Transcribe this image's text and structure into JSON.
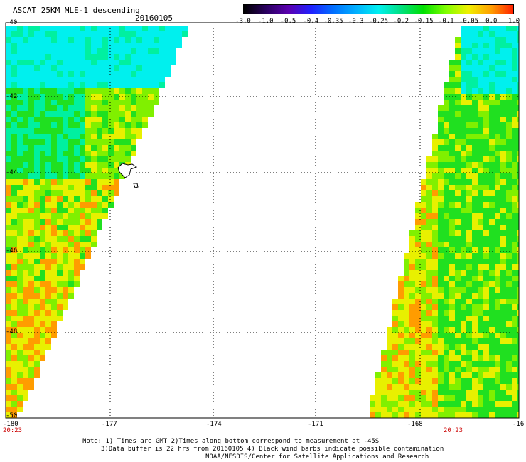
{
  "header": {
    "title": "ASCAT 25KM MLE-1 descending",
    "date": "20160105"
  },
  "colorbar": {
    "labels": [
      "-3.0",
      "-1.0",
      "-0.5",
      "-0.4",
      "-0.35",
      "-0.3",
      "-0.25",
      "-0.2",
      "-0.15",
      "-0.1",
      "-0.05",
      "0.0",
      "1.0"
    ],
    "colors": [
      "#000000",
      "#2a0060",
      "#5a00b0",
      "#2020ff",
      "#0070ff",
      "#00b0ff",
      "#00f0f0",
      "#00e080",
      "#00e000",
      "#80ff00",
      "#f0f000",
      "#ffa000",
      "#ff2000"
    ]
  },
  "axes": {
    "lat_labels": [
      "-40",
      "-42",
      "-44",
      "-46",
      "-48",
      "-50"
    ],
    "lon_labels": [
      "-180",
      "-177",
      "-174",
      "-171",
      "-168",
      "-16"
    ],
    "time_labels": [
      "20:23",
      "20:23"
    ]
  },
  "note": {
    "line1": "Note: 1) Times are GMT 2)Times along bottom correspond to measurement at -45S",
    "line2": "3)Data buffer is 22 hrs from 20160105 4) Black wind barbs indicate possible contamination",
    "line3": "NOAA/NESDIS/Center for Satellite Applications and Research"
  }
}
